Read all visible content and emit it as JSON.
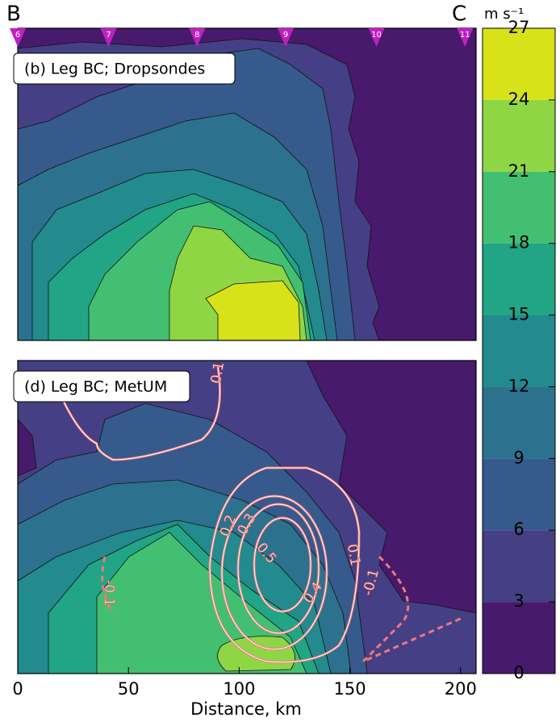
{
  "chart_data": [
    {
      "type": "contour",
      "title": "(b) Leg BC; Dropsondes",
      "left_label": "B",
      "right_label": "C",
      "xlim": [
        0,
        207
      ],
      "marker_labels": [
        "6",
        "7",
        "8",
        "9",
        "10",
        "11"
      ],
      "marker_x": [
        0,
        41,
        81,
        121,
        162,
        202
      ],
      "marker_color": "#c020c0"
    },
    {
      "type": "contour",
      "title": "(d) Leg BC; MetUM",
      "xlabel": "Distance, km",
      "xlim": [
        0,
        207
      ],
      "xticks": [
        0,
        50,
        100,
        150,
        200
      ],
      "contour_labels": [
        "0.1",
        "0.1",
        "-0.1",
        "-0.1",
        "0.2",
        "0.3",
        "0.5",
        "0.4"
      ]
    },
    {
      "type": "colorbar",
      "label": "m s⁻¹",
      "ylim": [
        0,
        27
      ],
      "yticks": [
        0,
        3,
        6,
        9,
        12,
        15,
        18,
        21,
        24,
        27
      ],
      "colors": [
        "#481a6c",
        "#453f85",
        "#375a8c",
        "#2c728e",
        "#238a8d",
        "#21a585",
        "#43bf71",
        "#8fd645",
        "#d8e219"
      ]
    }
  ]
}
